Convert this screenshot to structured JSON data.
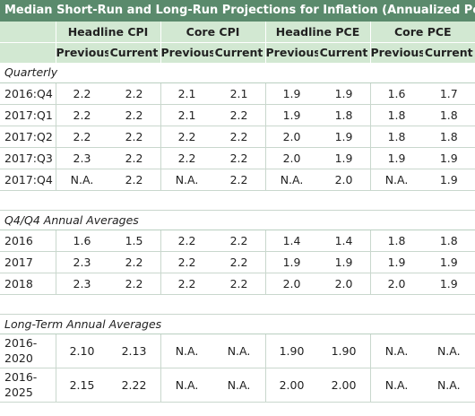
{
  "title": "Median Short-Run and Long-Run Projections for Inflation (Annualized Percentage Points)",
  "groups": [
    "Headline CPI",
    "Core CPI",
    "Headline PCE",
    "Core PCE"
  ],
  "subheaders": [
    "Previous",
    "Current"
  ],
  "colors": {
    "title_bg": "#5a8a6c",
    "header_bg": "#d2e8d2",
    "grid": "#c9d7cd"
  },
  "sections": [
    {
      "label": "Quarterly",
      "rows": [
        {
          "label": "2016:Q4",
          "cells": [
            "2.2",
            "2.2",
            "2.1",
            "2.1",
            "1.9",
            "1.9",
            "1.6",
            "1.7"
          ]
        },
        {
          "label": "2017:Q1",
          "cells": [
            "2.2",
            "2.2",
            "2.1",
            "2.2",
            "1.9",
            "1.8",
            "1.8",
            "1.8"
          ]
        },
        {
          "label": "2017:Q2",
          "cells": [
            "2.2",
            "2.2",
            "2.2",
            "2.2",
            "2.0",
            "1.9",
            "1.8",
            "1.8"
          ]
        },
        {
          "label": "2017:Q3",
          "cells": [
            "2.3",
            "2.2",
            "2.2",
            "2.2",
            "2.0",
            "1.9",
            "1.9",
            "1.9"
          ]
        },
        {
          "label": "2017:Q4",
          "cells": [
            "N.A.",
            "2.2",
            "N.A.",
            "2.2",
            "N.A.",
            "2.0",
            "N.A.",
            "1.9"
          ]
        }
      ]
    },
    {
      "label": "Q4/Q4 Annual Averages",
      "rows": [
        {
          "label": "2016",
          "cells": [
            "1.6",
            "1.5",
            "2.2",
            "2.2",
            "1.4",
            "1.4",
            "1.8",
            "1.8"
          ]
        },
        {
          "label": "2017",
          "cells": [
            "2.3",
            "2.2",
            "2.2",
            "2.2",
            "1.9",
            "1.9",
            "1.9",
            "1.9"
          ]
        },
        {
          "label": "2018",
          "cells": [
            "2.3",
            "2.2",
            "2.2",
            "2.2",
            "2.0",
            "2.0",
            "2.0",
            "1.9"
          ]
        }
      ]
    },
    {
      "label": "Long-Term Annual Averages",
      "rows": [
        {
          "label": "2016-\n2020",
          "cells": [
            "2.10",
            "2.13",
            "N.A.",
            "N.A.",
            "1.90",
            "1.90",
            "N.A.",
            "N.A."
          ]
        },
        {
          "label": "2016-\n2025",
          "cells": [
            "2.15",
            "2.22",
            "N.A.",
            "N.A.",
            "2.00",
            "2.00",
            "N.A.",
            "N.A."
          ]
        }
      ]
    }
  ]
}
